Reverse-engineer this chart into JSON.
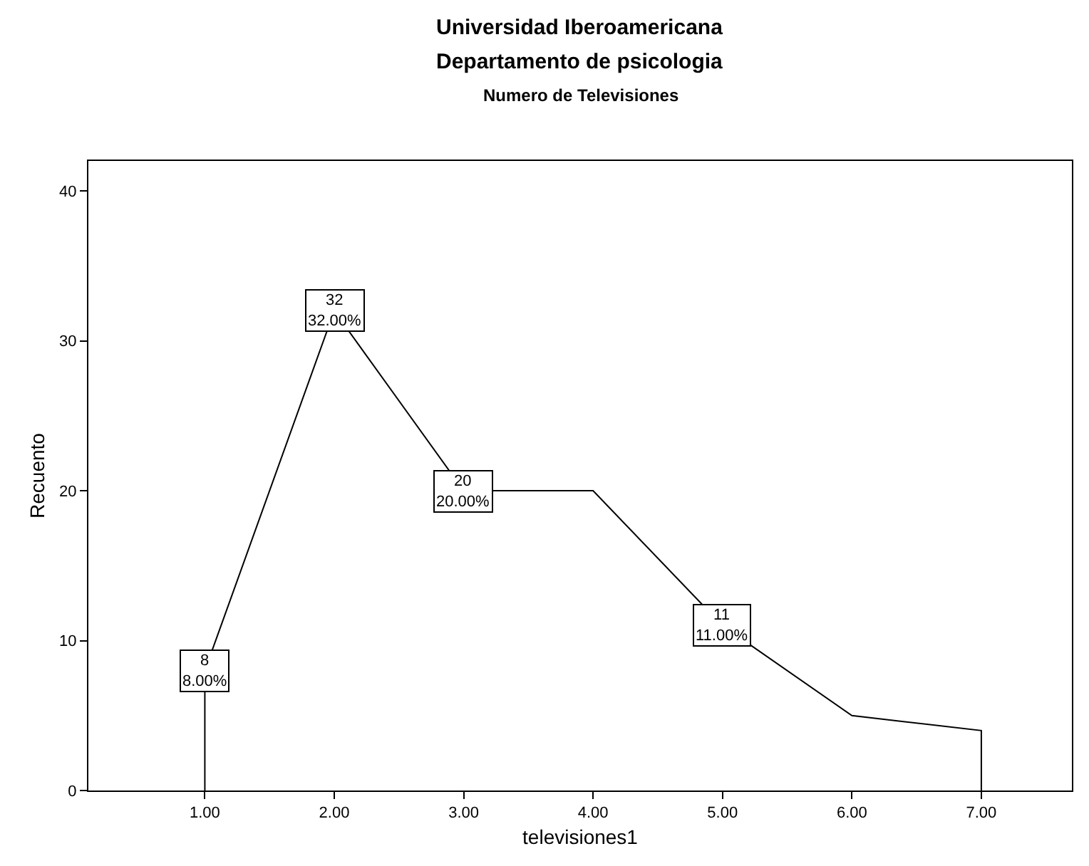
{
  "chart_data": {
    "type": "line",
    "title": "Universidad Iberoamericana",
    "subtitle": "Departamento de psicologia",
    "annotations": [
      "Numero de Televisiones"
    ],
    "xlabel": "televisiones1",
    "ylabel": "Recuento",
    "x": [
      1,
      1,
      2,
      3,
      4,
      5,
      6,
      7,
      7
    ],
    "series": [
      {
        "color": "#000000",
        "values": [
          0,
          8,
          32,
          20,
          20,
          11,
          5,
          4,
          0
        ],
        "value_labels": [
          null,
          "8\n8.00%",
          "32\n32.00%",
          "20\n20.00%",
          null,
          "11\n11.00%",
          null,
          null,
          null
        ]
      }
    ],
    "xlim": [
      0.1,
      7.7
    ],
    "xticks": [
      {
        "value": 1,
        "label": "1.00"
      },
      {
        "value": 2,
        "label": "2.00"
      },
      {
        "value": 3,
        "label": "3.00"
      },
      {
        "value": 4,
        "label": "4.00"
      },
      {
        "value": 5,
        "label": "5.00"
      },
      {
        "value": 6,
        "label": "6.00"
      },
      {
        "value": 7,
        "label": "7.00"
      }
    ],
    "ylim": [
      0,
      42
    ],
    "yticks": [
      0,
      10,
      20,
      30,
      40
    ],
    "marker": "none",
    "line_style": "solid"
  }
}
